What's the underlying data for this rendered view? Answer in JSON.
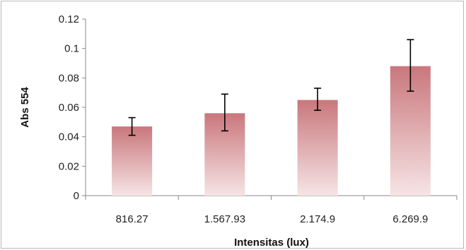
{
  "chart_data": {
    "type": "bar",
    "title": "",
    "xlabel": "Intensitas (lux)",
    "ylabel": "Abs 554",
    "categories": [
      "816.27",
      "1.567.93",
      "2.174.9",
      "6.269.9"
    ],
    "values": [
      0.047,
      0.056,
      0.065,
      0.088
    ],
    "error_high": [
      0.053,
      0.069,
      0.073,
      0.106
    ],
    "error_low": [
      0.041,
      0.044,
      0.058,
      0.071
    ],
    "ylim": [
      0,
      0.12
    ],
    "yticks": [
      "0",
      "0.02",
      "0.04",
      "0.06",
      "0.08",
      "0.1",
      "0.12"
    ],
    "yticks_values": [
      0,
      0.02,
      0.04,
      0.06,
      0.08,
      0.1,
      0.12
    ],
    "grid": false,
    "legend": "none",
    "colors": {
      "bar_top": "#c9777c",
      "bar_bottom": "#f6e4e5",
      "error_bar": "#000000",
      "axis": "#888888"
    }
  }
}
